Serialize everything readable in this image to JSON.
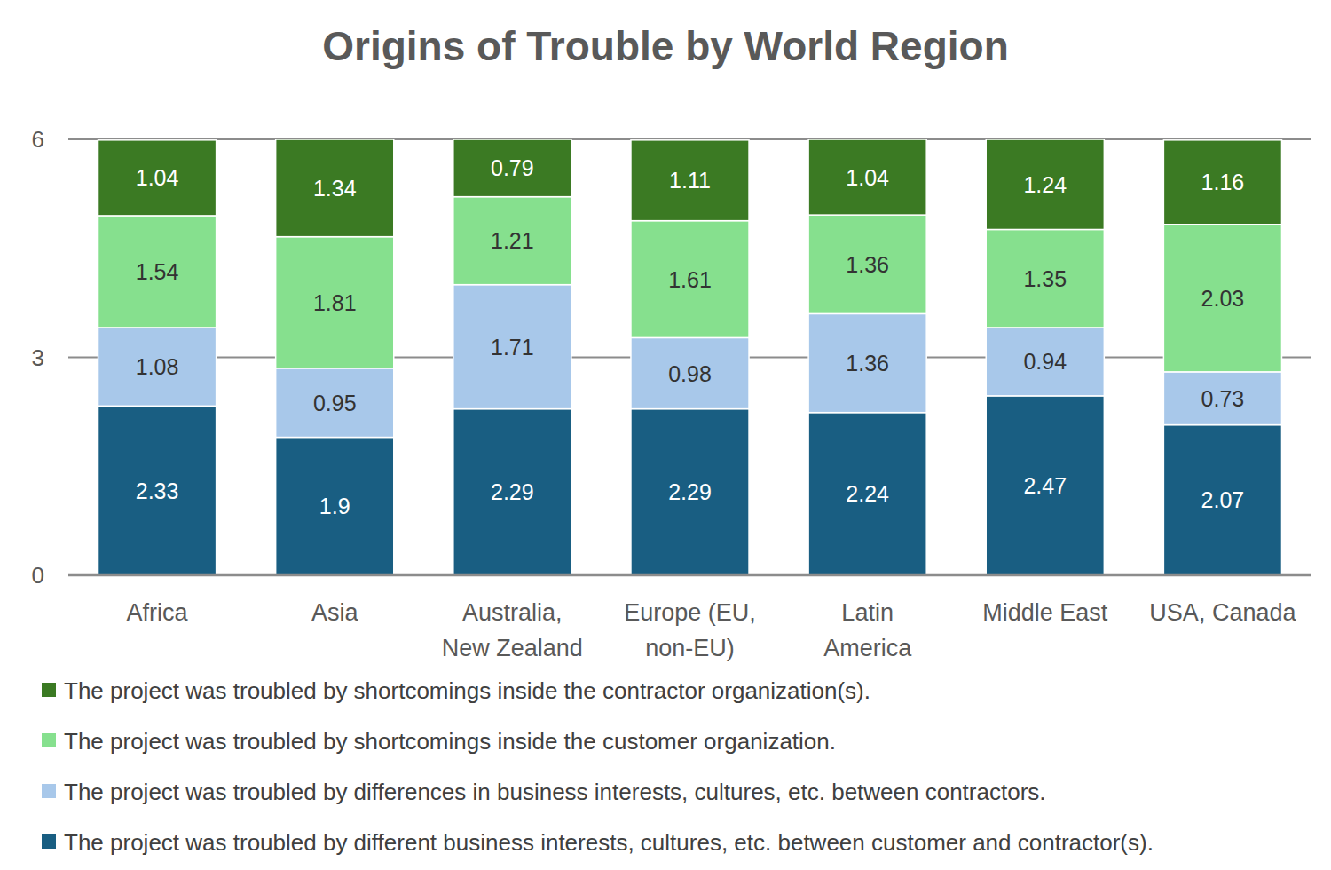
{
  "chart_data": {
    "type": "bar",
    "title": "Origins of Trouble by World Region",
    "stacked": true,
    "data_labels": true,
    "grid": true,
    "legend": "bottom",
    "categories": [
      "Africa",
      "Asia",
      "Australia,\nNew Zealand",
      "Europe (EU,\nnon-EU)",
      "Latin\nAmerica",
      "Middle East",
      "USA, Canada"
    ],
    "series": [
      {
        "name": "The project was troubled by different business interests, cultures, etc. between customer and contractor(s).",
        "color": "#195e82",
        "values": [
          2.33,
          1.9,
          2.29,
          2.29,
          2.24,
          2.47,
          2.07
        ]
      },
      {
        "name": "The project was troubled by differences in business interests, cultures, etc. between contractors.",
        "color": "#a8c8ea",
        "values": [
          1.08,
          0.95,
          1.71,
          0.98,
          1.36,
          0.94,
          0.73
        ]
      },
      {
        "name": "The project was troubled by shortcomings inside the customer organization.",
        "color": "#86e08e",
        "values": [
          1.54,
          1.81,
          1.21,
          1.61,
          1.36,
          1.35,
          2.03
        ]
      },
      {
        "name": "The project was troubled by shortcomings inside the contractor organization(s).",
        "color": "#3b7a23",
        "values": [
          1.04,
          1.34,
          0.79,
          1.11,
          1.04,
          1.24,
          1.16
        ]
      }
    ],
    "ylim": [
      0,
      6
    ],
    "yticks": [
      0,
      3,
      6
    ]
  }
}
